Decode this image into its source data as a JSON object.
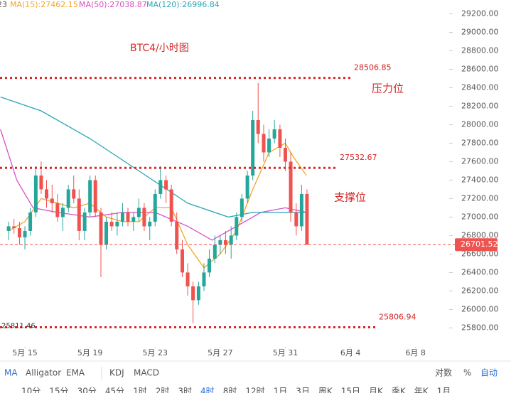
{
  "chart_data": {
    "type": "candlestick",
    "title": "BTC4/小时图",
    "ma_legend_prefix": "23",
    "xlim": [
      13.47,
      40.76
    ],
    "ylim": [
      25580,
      29350
    ],
    "xticks": [
      {
        "value": 15,
        "label": "5月 15"
      },
      {
        "value": 19,
        "label": "5月 19"
      },
      {
        "value": 23,
        "label": "5月 23"
      },
      {
        "value": 27,
        "label": "5月 27"
      },
      {
        "value": 31,
        "label": "5月 31"
      },
      {
        "value": 35,
        "label": "6月 4"
      },
      {
        "value": 39,
        "label": "6月 8"
      }
    ],
    "yticks": [
      {
        "value": 25800,
        "label": "25800.00"
      },
      {
        "value": 26000,
        "label": "26000.00"
      },
      {
        "value": 26200,
        "label": "26200.00"
      },
      {
        "value": 26400,
        "label": "26400.00"
      },
      {
        "value": 26600,
        "label": "26600.00"
      },
      {
        "value": 26800,
        "label": "26800.00"
      },
      {
        "value": 27000,
        "label": "27000.00"
      },
      {
        "value": 27200,
        "label": "27200.00"
      },
      {
        "value": 27400,
        "label": "27400.00"
      },
      {
        "value": 27600,
        "label": "27600.00"
      },
      {
        "value": 27800,
        "label": "27800.00"
      },
      {
        "value": 28000,
        "label": "28000.00"
      },
      {
        "value": 28200,
        "label": "28200.00"
      },
      {
        "value": 28400,
        "label": "28400.00"
      },
      {
        "value": 28600,
        "label": "28600.00"
      },
      {
        "value": 28800,
        "label": "28800.00"
      },
      {
        "value": 29000,
        "label": "29000.00"
      },
      {
        "value": 29200,
        "label": "29200.00"
      }
    ],
    "up_color": "#26a69a",
    "down_color": "#ef5350",
    "candles": [
      {
        "t": 14,
        "o": 26850,
        "h": 26950,
        "l": 26750,
        "c": 26900
      },
      {
        "t": 14.33,
        "o": 26900,
        "h": 26980,
        "l": 26820,
        "c": 26880
      },
      {
        "t": 14.67,
        "o": 26880,
        "h": 26950,
        "l": 26700,
        "c": 26780
      },
      {
        "t": 15,
        "o": 26780,
        "h": 26900,
        "l": 26650,
        "c": 26850
      },
      {
        "t": 15.33,
        "o": 26850,
        "h": 27100,
        "l": 26800,
        "c": 27050
      },
      {
        "t": 15.67,
        "o": 27050,
        "h": 27550,
        "l": 27000,
        "c": 27450
      },
      {
        "t": 16,
        "o": 27450,
        "h": 27600,
        "l": 27250,
        "c": 27300
      },
      {
        "t": 16.33,
        "o": 27300,
        "h": 27400,
        "l": 27100,
        "c": 27200
      },
      {
        "t": 16.67,
        "o": 27200,
        "h": 27350,
        "l": 27050,
        "c": 27150
      },
      {
        "t": 17,
        "o": 27150,
        "h": 27250,
        "l": 26950,
        "c": 27000
      },
      {
        "t": 17.33,
        "o": 27000,
        "h": 27150,
        "l": 26850,
        "c": 27100
      },
      {
        "t": 17.67,
        "o": 27100,
        "h": 27350,
        "l": 27050,
        "c": 27300
      },
      {
        "t": 18,
        "o": 27300,
        "h": 27450,
        "l": 27150,
        "c": 27200
      },
      {
        "t": 18.33,
        "o": 27200,
        "h": 27300,
        "l": 26750,
        "c": 26850
      },
      {
        "t": 18.67,
        "o": 26850,
        "h": 27100,
        "l": 26750,
        "c": 27050
      },
      {
        "t": 19,
        "o": 27050,
        "h": 27450,
        "l": 27000,
        "c": 27400
      },
      {
        "t": 19.33,
        "o": 27400,
        "h": 27450,
        "l": 27000,
        "c": 27050
      },
      {
        "t": 19.67,
        "o": 27050,
        "h": 27100,
        "l": 26350,
        "c": 26700
      },
      {
        "t": 20,
        "o": 26700,
        "h": 27000,
        "l": 26650,
        "c": 26950
      },
      {
        "t": 20.33,
        "o": 26950,
        "h": 27050,
        "l": 26850,
        "c": 26900
      },
      {
        "t": 20.67,
        "o": 26900,
        "h": 27050,
        "l": 26800,
        "c": 26950
      },
      {
        "t": 21,
        "o": 26950,
        "h": 27150,
        "l": 26900,
        "c": 27050
      },
      {
        "t": 21.33,
        "o": 27050,
        "h": 27100,
        "l": 26900,
        "c": 26950
      },
      {
        "t": 21.67,
        "o": 26950,
        "h": 27050,
        "l": 26850,
        "c": 27000
      },
      {
        "t": 22,
        "o": 27000,
        "h": 27200,
        "l": 26950,
        "c": 27100
      },
      {
        "t": 22.33,
        "o": 27100,
        "h": 27150,
        "l": 26850,
        "c": 26900
      },
      {
        "t": 22.67,
        "o": 26900,
        "h": 27000,
        "l": 26750,
        "c": 26950
      },
      {
        "t": 23,
        "o": 26950,
        "h": 27300,
        "l": 26900,
        "c": 27250
      },
      {
        "t": 23.33,
        "o": 27250,
        "h": 27550,
        "l": 27200,
        "c": 27400
      },
      {
        "t": 23.67,
        "o": 27400,
        "h": 27450,
        "l": 27150,
        "c": 27300
      },
      {
        "t": 24,
        "o": 27300,
        "h": 27350,
        "l": 26900,
        "c": 26950
      },
      {
        "t": 24.33,
        "o": 26950,
        "h": 27050,
        "l": 26600,
        "c": 26650
      },
      {
        "t": 24.67,
        "o": 26650,
        "h": 26750,
        "l": 26350,
        "c": 26400
      },
      {
        "t": 25,
        "o": 26400,
        "h": 26500,
        "l": 26150,
        "c": 26250
      },
      {
        "t": 25.33,
        "o": 26250,
        "h": 26300,
        "l": 25850,
        "c": 26100
      },
      {
        "t": 25.67,
        "o": 26100,
        "h": 26300,
        "l": 26050,
        "c": 26250
      },
      {
        "t": 26,
        "o": 26250,
        "h": 26500,
        "l": 26200,
        "c": 26400
      },
      {
        "t": 26.33,
        "o": 26400,
        "h": 26650,
        "l": 26350,
        "c": 26550
      },
      {
        "t": 26.67,
        "o": 26550,
        "h": 26800,
        "l": 26500,
        "c": 26700
      },
      {
        "t": 27,
        "o": 26700,
        "h": 26800,
        "l": 26600,
        "c": 26750
      },
      {
        "t": 27.33,
        "o": 26750,
        "h": 26850,
        "l": 26600,
        "c": 26700
      },
      {
        "t": 27.67,
        "o": 26700,
        "h": 26900,
        "l": 26550,
        "c": 26800
      },
      {
        "t": 28,
        "o": 26800,
        "h": 27050,
        "l": 26750,
        "c": 27000
      },
      {
        "t": 28.33,
        "o": 27000,
        "h": 27250,
        "l": 26950,
        "c": 27200
      },
      {
        "t": 28.67,
        "o": 27200,
        "h": 27500,
        "l": 27150,
        "c": 27450
      },
      {
        "t": 29,
        "o": 27450,
        "h": 28150,
        "l": 27400,
        "c": 28050
      },
      {
        "t": 29.33,
        "o": 28050,
        "h": 28450,
        "l": 27800,
        "c": 27900
      },
      {
        "t": 29.67,
        "o": 27900,
        "h": 28000,
        "l": 27600,
        "c": 27700
      },
      {
        "t": 30,
        "o": 27700,
        "h": 27950,
        "l": 27650,
        "c": 27850
      },
      {
        "t": 30.33,
        "o": 27850,
        "h": 28050,
        "l": 27800,
        "c": 27950
      },
      {
        "t": 30.67,
        "o": 27950,
        "h": 28000,
        "l": 27650,
        "c": 27750
      },
      {
        "t": 31,
        "o": 27750,
        "h": 27850,
        "l": 27500,
        "c": 27600
      },
      {
        "t": 31.33,
        "o": 27600,
        "h": 27700,
        "l": 26950,
        "c": 27050
      },
      {
        "t": 31.67,
        "o": 27050,
        "h": 27150,
        "l": 26800,
        "c": 26900
      },
      {
        "t": 32,
        "o": 26900,
        "h": 27350,
        "l": 26850,
        "c": 27250
      },
      {
        "t": 32.33,
        "o": 27250,
        "h": 27300,
        "l": 26700,
        "c": 26701.52
      }
    ],
    "ma_lines": [
      {
        "name": "MA(15):27462.15",
        "color": "#f5a623",
        "x": [
          14,
          15,
          16,
          17,
          18,
          19,
          20,
          21,
          22,
          23,
          24,
          25,
          26,
          27,
          28,
          29,
          30,
          31,
          31.5,
          32.3
        ],
        "values": [
          26850,
          26950,
          27200,
          27150,
          27100,
          27150,
          27000,
          26950,
          26950,
          27100,
          27100,
          26700,
          26450,
          26600,
          26850,
          27300,
          27700,
          27800,
          27650,
          27450
        ]
      },
      {
        "name": "MA(50):27038.87",
        "color": "#d94fc4",
        "x": [
          13.5,
          14.5,
          15.5,
          17,
          19,
          21,
          23,
          25,
          26.5,
          28,
          29.5,
          31,
          32.3
        ],
        "values": [
          27950,
          27400,
          27100,
          27050,
          27000,
          27050,
          27050,
          26900,
          26750,
          26900,
          27050,
          27100,
          27050
        ]
      },
      {
        "name": "MA(120):26996.84",
        "color": "#2aa6b8",
        "x": [
          13.5,
          16,
          19,
          22,
          25,
          27.5,
          29,
          32.3
        ],
        "values": [
          28300,
          28150,
          27850,
          27500,
          27150,
          27000,
          27050,
          27050
        ]
      }
    ],
    "levels": [
      {
        "value": 28506.85,
        "label": "28506.85",
        "note": "压力位"
      },
      {
        "value": 27532.67,
        "label": "27532.67",
        "note": "支撑位"
      },
      {
        "value": 25806.94,
        "label": "25806.94",
        "left_label": "25811.46"
      }
    ],
    "last_price": 26701.52
  },
  "toolbar": {
    "indicators": [
      "MA",
      "Alligator",
      "EMA",
      "KDJ",
      "MACD"
    ],
    "right": [
      "对数",
      "%",
      "自动"
    ],
    "intervals": [
      "10分",
      "15分",
      "30分",
      "45分",
      "1时",
      "2时",
      "3时",
      "4时",
      "8时",
      "12时",
      "1日",
      "3日",
      "周K",
      "15日",
      "月K",
      "季K",
      "年K",
      "1月"
    ]
  }
}
